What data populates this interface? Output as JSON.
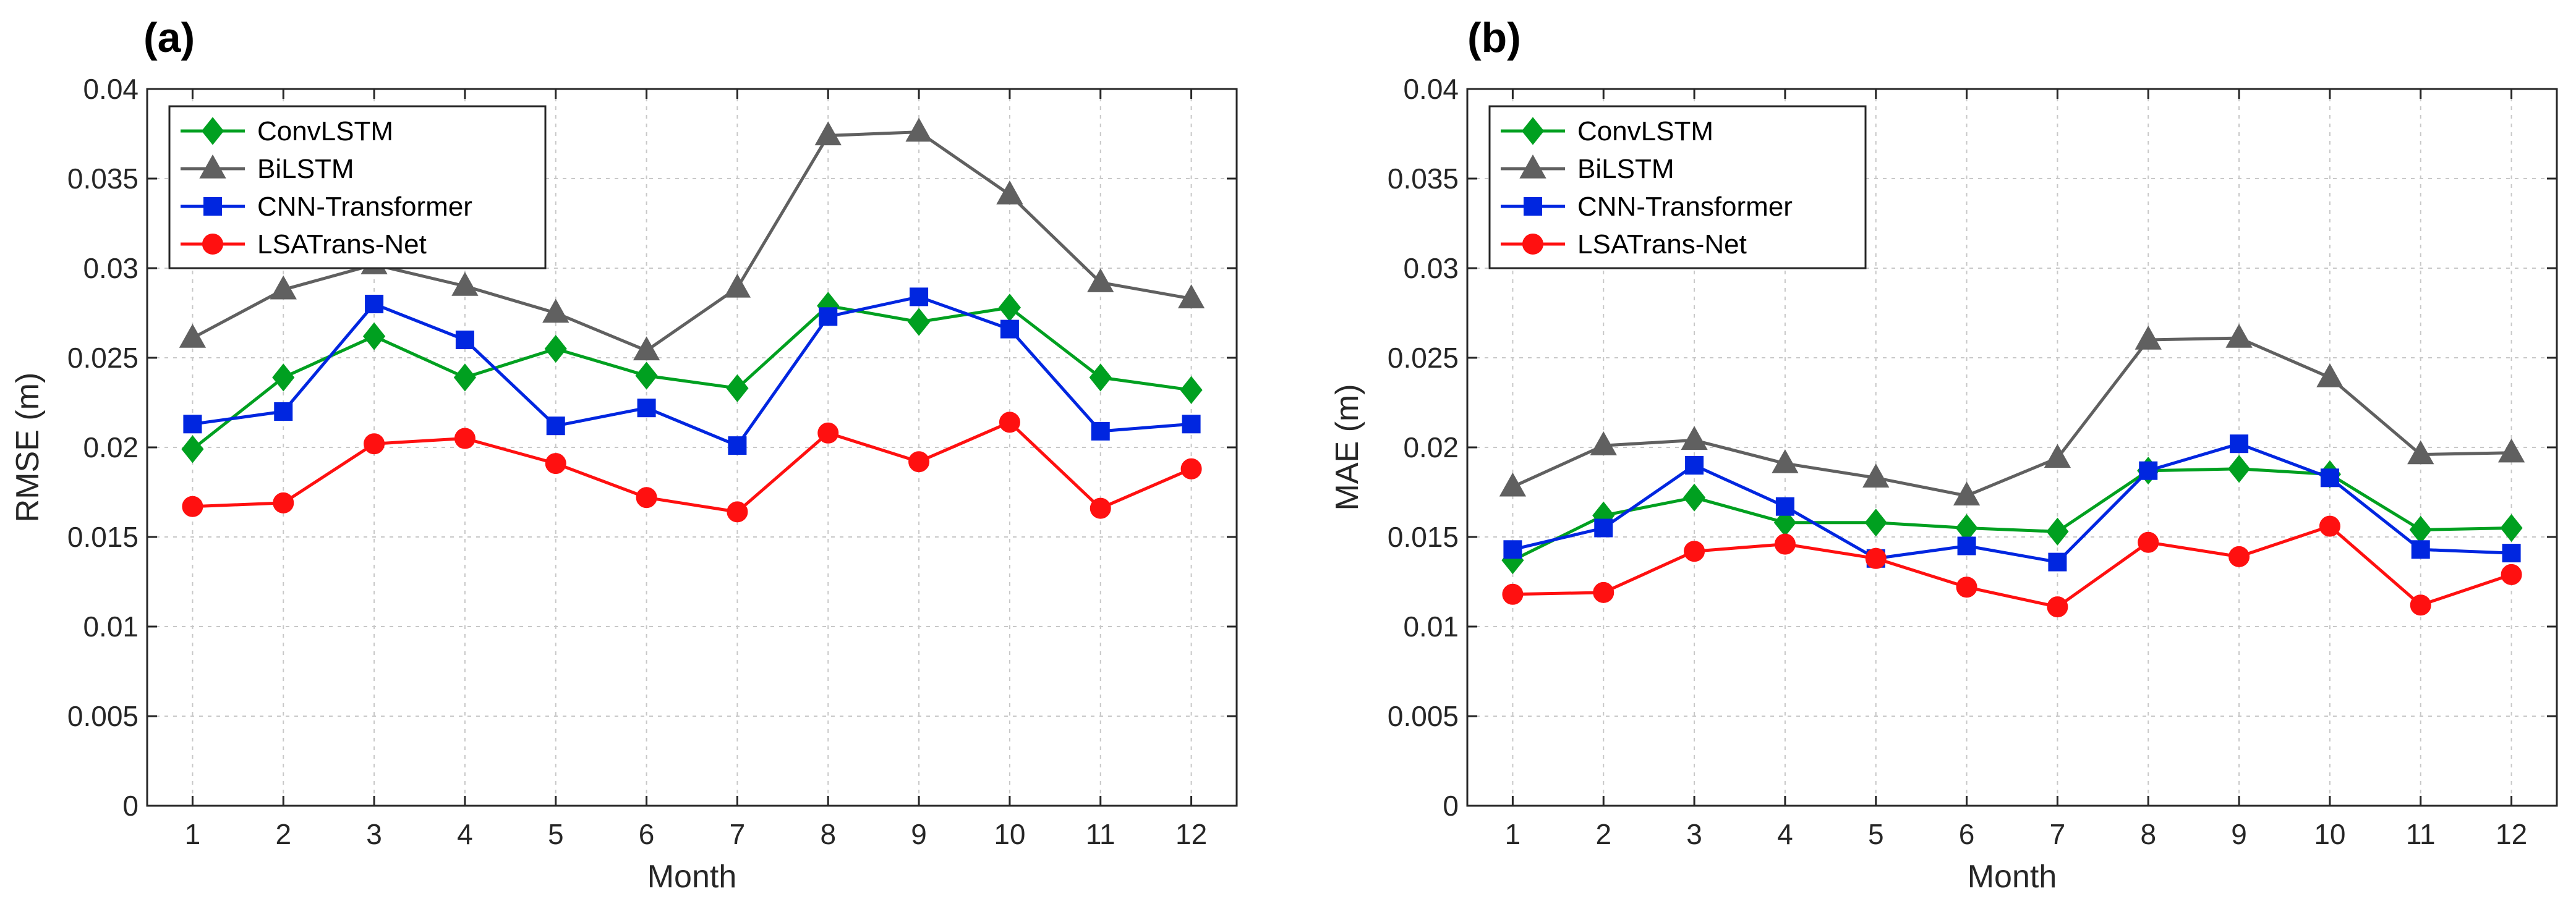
{
  "chart_data": [
    {
      "type": "line",
      "panel_label": "(a)",
      "title": "",
      "xlabel": "Month",
      "ylabel": "RMSE (m)",
      "xlim": [
        0.5,
        12.5
      ],
      "ylim": [
        0,
        0.04
      ],
      "x": [
        1,
        2,
        3,
        4,
        5,
        6,
        7,
        8,
        9,
        10,
        11,
        12
      ],
      "xtick_labels": [
        "1",
        "2",
        "3",
        "4",
        "5",
        "6",
        "7",
        "8",
        "9",
        "10",
        "11",
        "12"
      ],
      "yticks": [
        0,
        0.005,
        0.01,
        0.015,
        0.02,
        0.025,
        0.03,
        0.035,
        0.04
      ],
      "ytick_labels": [
        "0",
        "0.005",
        "0.01",
        "0.015",
        "0.02",
        "0.025",
        "0.03",
        "0.035",
        "0.04"
      ],
      "grid": true,
      "legend_position": "top-left",
      "series": [
        {
          "name": "ConvLSTM",
          "color": "#00a020",
          "marker": "diamond",
          "values": [
            0.0199,
            0.0239,
            0.0262,
            0.0239,
            0.0255,
            0.024,
            0.0233,
            0.0279,
            0.027,
            0.0278,
            0.0239,
            0.0232
          ]
        },
        {
          "name": "BiLSTM",
          "color": "#606060",
          "marker": "triangle",
          "values": [
            0.0261,
            0.0288,
            0.0302,
            0.029,
            0.0275,
            0.0254,
            0.0289,
            0.0374,
            0.0376,
            0.0341,
            0.0292,
            0.0283
          ]
        },
        {
          "name": "CNN-Transformer",
          "color": "#0026e0",
          "marker": "square",
          "values": [
            0.0213,
            0.022,
            0.028,
            0.026,
            0.0212,
            0.0222,
            0.0201,
            0.0273,
            0.0284,
            0.0266,
            0.0209,
            0.0213
          ]
        },
        {
          "name": "LSATrans-Net",
          "color": "#ff1010",
          "marker": "circle",
          "values": [
            0.0167,
            0.0169,
            0.0202,
            0.0205,
            0.0191,
            0.0172,
            0.0164,
            0.0208,
            0.0192,
            0.0214,
            0.0166,
            0.0188
          ]
        }
      ]
    },
    {
      "type": "line",
      "panel_label": "(b)",
      "title": "",
      "xlabel": "Month",
      "ylabel": "MAE (m)",
      "xlim": [
        0.5,
        12.5
      ],
      "ylim": [
        0,
        0.04
      ],
      "x": [
        1,
        2,
        3,
        4,
        5,
        6,
        7,
        8,
        9,
        10,
        11,
        12
      ],
      "xtick_labels": [
        "1",
        "2",
        "3",
        "4",
        "5",
        "6",
        "7",
        "8",
        "9",
        "10",
        "11",
        "12"
      ],
      "yticks": [
        0,
        0.005,
        0.01,
        0.015,
        0.02,
        0.025,
        0.03,
        0.035,
        0.04
      ],
      "ytick_labels": [
        "0",
        "0.005",
        "0.01",
        "0.015",
        "0.02",
        "0.025",
        "0.03",
        "0.035",
        "0.04"
      ],
      "grid": true,
      "legend_position": "top-left",
      "series": [
        {
          "name": "ConvLSTM",
          "color": "#00a020",
          "marker": "diamond",
          "values": [
            0.0137,
            0.0162,
            0.0172,
            0.0158,
            0.0158,
            0.0155,
            0.0153,
            0.0187,
            0.0188,
            0.0185,
            0.0154,
            0.0155
          ]
        },
        {
          "name": "BiLSTM",
          "color": "#606060",
          "marker": "triangle",
          "values": [
            0.0178,
            0.0201,
            0.0204,
            0.0191,
            0.0183,
            0.0173,
            0.0194,
            0.026,
            0.0261,
            0.0239,
            0.0196,
            0.0197
          ]
        },
        {
          "name": "CNN-Transformer",
          "color": "#0026e0",
          "marker": "square",
          "values": [
            0.0143,
            0.0155,
            0.019,
            0.0167,
            0.0138,
            0.0145,
            0.0136,
            0.0187,
            0.0202,
            0.0183,
            0.0143,
            0.0141
          ]
        },
        {
          "name": "LSATrans-Net",
          "color": "#ff1010",
          "marker": "circle",
          "values": [
            0.0118,
            0.0119,
            0.0142,
            0.0146,
            0.0138,
            0.0122,
            0.0111,
            0.0147,
            0.0139,
            0.0156,
            0.0112,
            0.0129
          ]
        }
      ]
    }
  ]
}
